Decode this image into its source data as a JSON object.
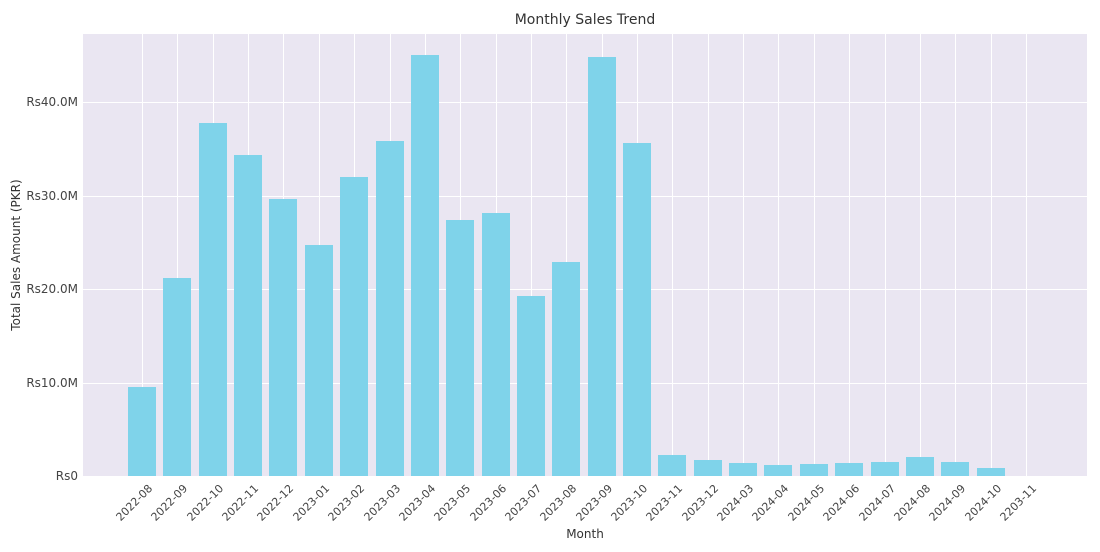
{
  "chart_data": {
    "type": "bar",
    "title": "Monthly Sales Trend",
    "xlabel": "Month",
    "ylabel": "Total Sales Amount (PKR)",
    "categories": [
      "2022-08",
      "2022-09",
      "2022-10",
      "2022-11",
      "2022-12",
      "2023-01",
      "2023-02",
      "2023-03",
      "2023-04",
      "2023-05",
      "2023-06",
      "2023-07",
      "2023-08",
      "2023-09",
      "2023-10",
      "2023-11",
      "2023-12",
      "2024-03",
      "2024-04",
      "2024-05",
      "2024-06",
      "2024-07",
      "2024-08",
      "2024-09",
      "2024-10",
      "2203-11"
    ],
    "values": [
      9.5,
      21.2,
      37.8,
      34.3,
      29.6,
      24.7,
      32.0,
      35.8,
      45.0,
      27.4,
      28.1,
      19.3,
      22.9,
      44.8,
      35.6,
      2.2,
      1.7,
      1.4,
      1.2,
      1.3,
      1.4,
      1.5,
      2.0,
      1.5,
      0.9,
      0.0
    ],
    "value_unit": "millions PKR",
    "yticks": [
      0,
      10,
      20,
      30,
      40
    ],
    "ytick_labels": [
      "Rs0",
      "Rs10.0M",
      "Rs20.0M",
      "Rs30.0M",
      "Rs40.0M"
    ],
    "ylim": [
      0,
      47.3
    ],
    "grid": true,
    "legend": null,
    "bar_color": "#7fd3ea",
    "background_color": "#eae6f2"
  }
}
